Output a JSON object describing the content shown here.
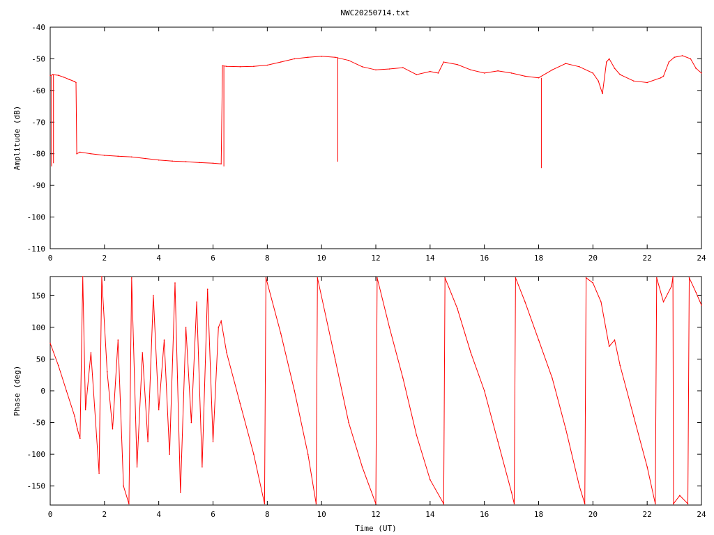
{
  "title": "NWC20250714.txt",
  "colors": {
    "series": "#ff0000",
    "axes": "#000000"
  },
  "chart_data": [
    {
      "type": "line",
      "title": "NWC20250714.txt",
      "xlabel": "",
      "ylabel": "Amplitude (dB)",
      "xlim": [
        0,
        24
      ],
      "ylim": [
        -110,
        -40
      ],
      "x_ticks": [
        "0",
        "2",
        "4",
        "6",
        "8",
        "10",
        "12",
        "14",
        "16",
        "18",
        "20",
        "22",
        "24"
      ],
      "y_ticks": [
        "-40",
        "-50",
        "-60",
        "-70",
        "-80",
        "-90",
        "-100",
        "-110"
      ],
      "grid": false,
      "series": [
        {
          "color": "#ff0000",
          "points": [
            [
              0.0,
              -55.3
            ],
            [
              0.1,
              -55.0
            ],
            [
              0.3,
              -55.2
            ],
            [
              0.5,
              -55.8
            ],
            [
              0.7,
              -56.5
            ],
            [
              0.9,
              -57.2
            ],
            [
              0.95,
              -57.5
            ],
            [
              0.98,
              -80.0
            ],
            [
              1.1,
              -79.5
            ],
            [
              1.5,
              -80.0
            ],
            [
              2.0,
              -80.5
            ],
            [
              2.5,
              -80.8
            ],
            [
              3.0,
              -81.0
            ],
            [
              3.5,
              -81.5
            ],
            [
              4.0,
              -82.0
            ],
            [
              4.5,
              -82.3
            ],
            [
              5.0,
              -82.5
            ],
            [
              5.5,
              -82.8
            ],
            [
              6.0,
              -83.0
            ],
            [
              6.3,
              -83.2
            ],
            [
              6.35,
              -52.2
            ],
            [
              6.5,
              -52.4
            ],
            [
              7.0,
              -52.5
            ],
            [
              7.5,
              -52.4
            ],
            [
              8.0,
              -52.0
            ],
            [
              8.5,
              -51.0
            ],
            [
              9.0,
              -50.0
            ],
            [
              9.5,
              -49.5
            ],
            [
              10.0,
              -49.2
            ],
            [
              10.5,
              -49.5
            ],
            [
              11.0,
              -50.5
            ],
            [
              11.5,
              -52.5
            ],
            [
              12.0,
              -53.5
            ],
            [
              12.5,
              -53.2
            ],
            [
              13.0,
              -52.8
            ],
            [
              13.5,
              -55.0
            ],
            [
              14.0,
              -54.0
            ],
            [
              14.3,
              -54.5
            ],
            [
              14.5,
              -51.0
            ],
            [
              15.0,
              -51.8
            ],
            [
              15.5,
              -53.5
            ],
            [
              16.0,
              -54.5
            ],
            [
              16.5,
              -53.8
            ],
            [
              17.0,
              -54.5
            ],
            [
              17.5,
              -55.5
            ],
            [
              18.0,
              -56.0
            ],
            [
              18.5,
              -53.5
            ],
            [
              19.0,
              -51.5
            ],
            [
              19.5,
              -52.5
            ],
            [
              20.0,
              -54.5
            ],
            [
              20.2,
              -57.0
            ],
            [
              20.35,
              -61.0
            ],
            [
              20.5,
              -51.0
            ],
            [
              20.6,
              -50.0
            ],
            [
              20.8,
              -53.0
            ],
            [
              21.0,
              -55.0
            ],
            [
              21.5,
              -57.0
            ],
            [
              22.0,
              -57.5
            ],
            [
              22.5,
              -56.0
            ],
            [
              22.6,
              -55.5
            ],
            [
              22.8,
              -51.0
            ],
            [
              23.0,
              -49.5
            ],
            [
              23.3,
              -49.0
            ],
            [
              23.6,
              -50.0
            ],
            [
              23.8,
              -53.0
            ],
            [
              24.0,
              -54.5
            ]
          ],
          "dropouts": [
            [
              0.05,
              -84.0
            ],
            [
              0.12,
              -83.0
            ],
            [
              6.4,
              -84.0
            ],
            [
              10.6,
              -82.5
            ],
            [
              18.1,
              -84.5
            ]
          ]
        }
      ]
    },
    {
      "type": "line",
      "title": "",
      "xlabel": "Time (UT)",
      "ylabel": "Phase (deg)",
      "xlim": [
        0,
        24
      ],
      "ylim": [
        -180,
        180
      ],
      "x_ticks": [
        "0",
        "2",
        "4",
        "6",
        "8",
        "10",
        "12",
        "14",
        "16",
        "18",
        "20",
        "22",
        "24"
      ],
      "y_ticks": [
        "150",
        "100",
        "50",
        "0",
        "-50",
        "-100",
        "-150"
      ],
      "grid": false,
      "series": [
        {
          "color": "#ff0000",
          "points": [
            [
              0.0,
              75
            ],
            [
              0.3,
              40
            ],
            [
              0.6,
              0
            ],
            [
              0.9,
              -40
            ],
            [
              1.0,
              -60
            ],
            [
              1.1,
              -75
            ],
            [
              1.2,
              180
            ],
            [
              1.3,
              -30
            ],
            [
              1.5,
              60
            ],
            [
              1.8,
              -130
            ],
            [
              1.9,
              180
            ],
            [
              2.1,
              30
            ],
            [
              2.3,
              -60
            ],
            [
              2.5,
              80
            ],
            [
              2.7,
              -150
            ],
            [
              2.9,
              -178
            ],
            [
              3.0,
              178
            ],
            [
              3.2,
              -120
            ],
            [
              3.4,
              60
            ],
            [
              3.6,
              -80
            ],
            [
              3.8,
              150
            ],
            [
              4.0,
              -30
            ],
            [
              4.2,
              80
            ],
            [
              4.4,
              -100
            ],
            [
              4.6,
              170
            ],
            [
              4.8,
              -160
            ],
            [
              5.0,
              100
            ],
            [
              5.2,
              -50
            ],
            [
              5.4,
              140
            ],
            [
              5.6,
              -120
            ],
            [
              5.8,
              160
            ],
            [
              6.0,
              -80
            ],
            [
              6.2,
              100
            ],
            [
              6.3,
              110
            ],
            [
              6.5,
              60
            ],
            [
              7.0,
              -20
            ],
            [
              7.5,
              -100
            ],
            [
              7.9,
              -178
            ],
            [
              7.95,
              178
            ],
            [
              8.5,
              90
            ],
            [
              9.0,
              0
            ],
            [
              9.5,
              -100
            ],
            [
              9.8,
              -178
            ],
            [
              9.85,
              178
            ],
            [
              10.5,
              50
            ],
            [
              11.0,
              -50
            ],
            [
              11.5,
              -120
            ],
            [
              12.0,
              -178
            ],
            [
              12.05,
              178
            ],
            [
              12.5,
              100
            ],
            [
              13.0,
              20
            ],
            [
              13.5,
              -70
            ],
            [
              14.0,
              -140
            ],
            [
              14.5,
              -178
            ],
            [
              14.55,
              178
            ],
            [
              15.0,
              130
            ],
            [
              15.5,
              60
            ],
            [
              16.0,
              0
            ],
            [
              16.5,
              -80
            ],
            [
              17.0,
              -160
            ],
            [
              17.1,
              -178
            ],
            [
              17.15,
              178
            ],
            [
              17.5,
              140
            ],
            [
              18.0,
              80
            ],
            [
              18.5,
              20
            ],
            [
              19.0,
              -60
            ],
            [
              19.5,
              -150
            ],
            [
              19.7,
              -178
            ],
            [
              19.75,
              178
            ],
            [
              20.0,
              170
            ],
            [
              20.3,
              140
            ],
            [
              20.6,
              70
            ],
            [
              20.8,
              80
            ],
            [
              21.0,
              40
            ],
            [
              21.5,
              -40
            ],
            [
              22.0,
              -120
            ],
            [
              22.3,
              -178
            ],
            [
              22.35,
              178
            ],
            [
              22.6,
              140
            ],
            [
              22.9,
              165
            ],
            [
              22.95,
              180
            ],
            [
              22.97,
              -178
            ],
            [
              23.2,
              -165
            ],
            [
              23.5,
              -178
            ],
            [
              23.55,
              178
            ],
            [
              23.8,
              155
            ],
            [
              24.0,
              135
            ]
          ]
        }
      ]
    }
  ]
}
